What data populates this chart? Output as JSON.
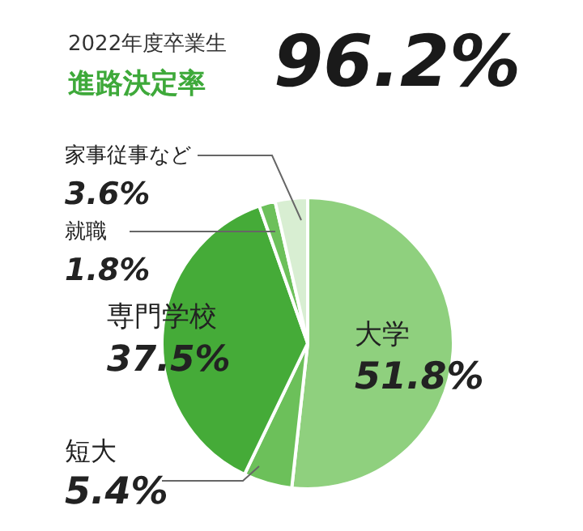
{
  "chart_data": {
    "type": "pie",
    "title": "2022年度卒業生",
    "subtitle": "進路決定率",
    "annotations": [
      "96.2%"
    ],
    "categories": [
      "大学",
      "短大",
      "専門学校",
      "就職",
      "家事従事など"
    ],
    "values": [
      51.8,
      5.4,
      37.5,
      1.8,
      3.6
    ],
    "value_labels": [
      "51.8%",
      "5.4%",
      "37.5%",
      "1.8%",
      "3.6%"
    ],
    "colors": [
      "#8fd07e",
      "#6cc05a",
      "#45ab38",
      "#6cc05a",
      "#d8eed2"
    ],
    "legend": false
  }
}
